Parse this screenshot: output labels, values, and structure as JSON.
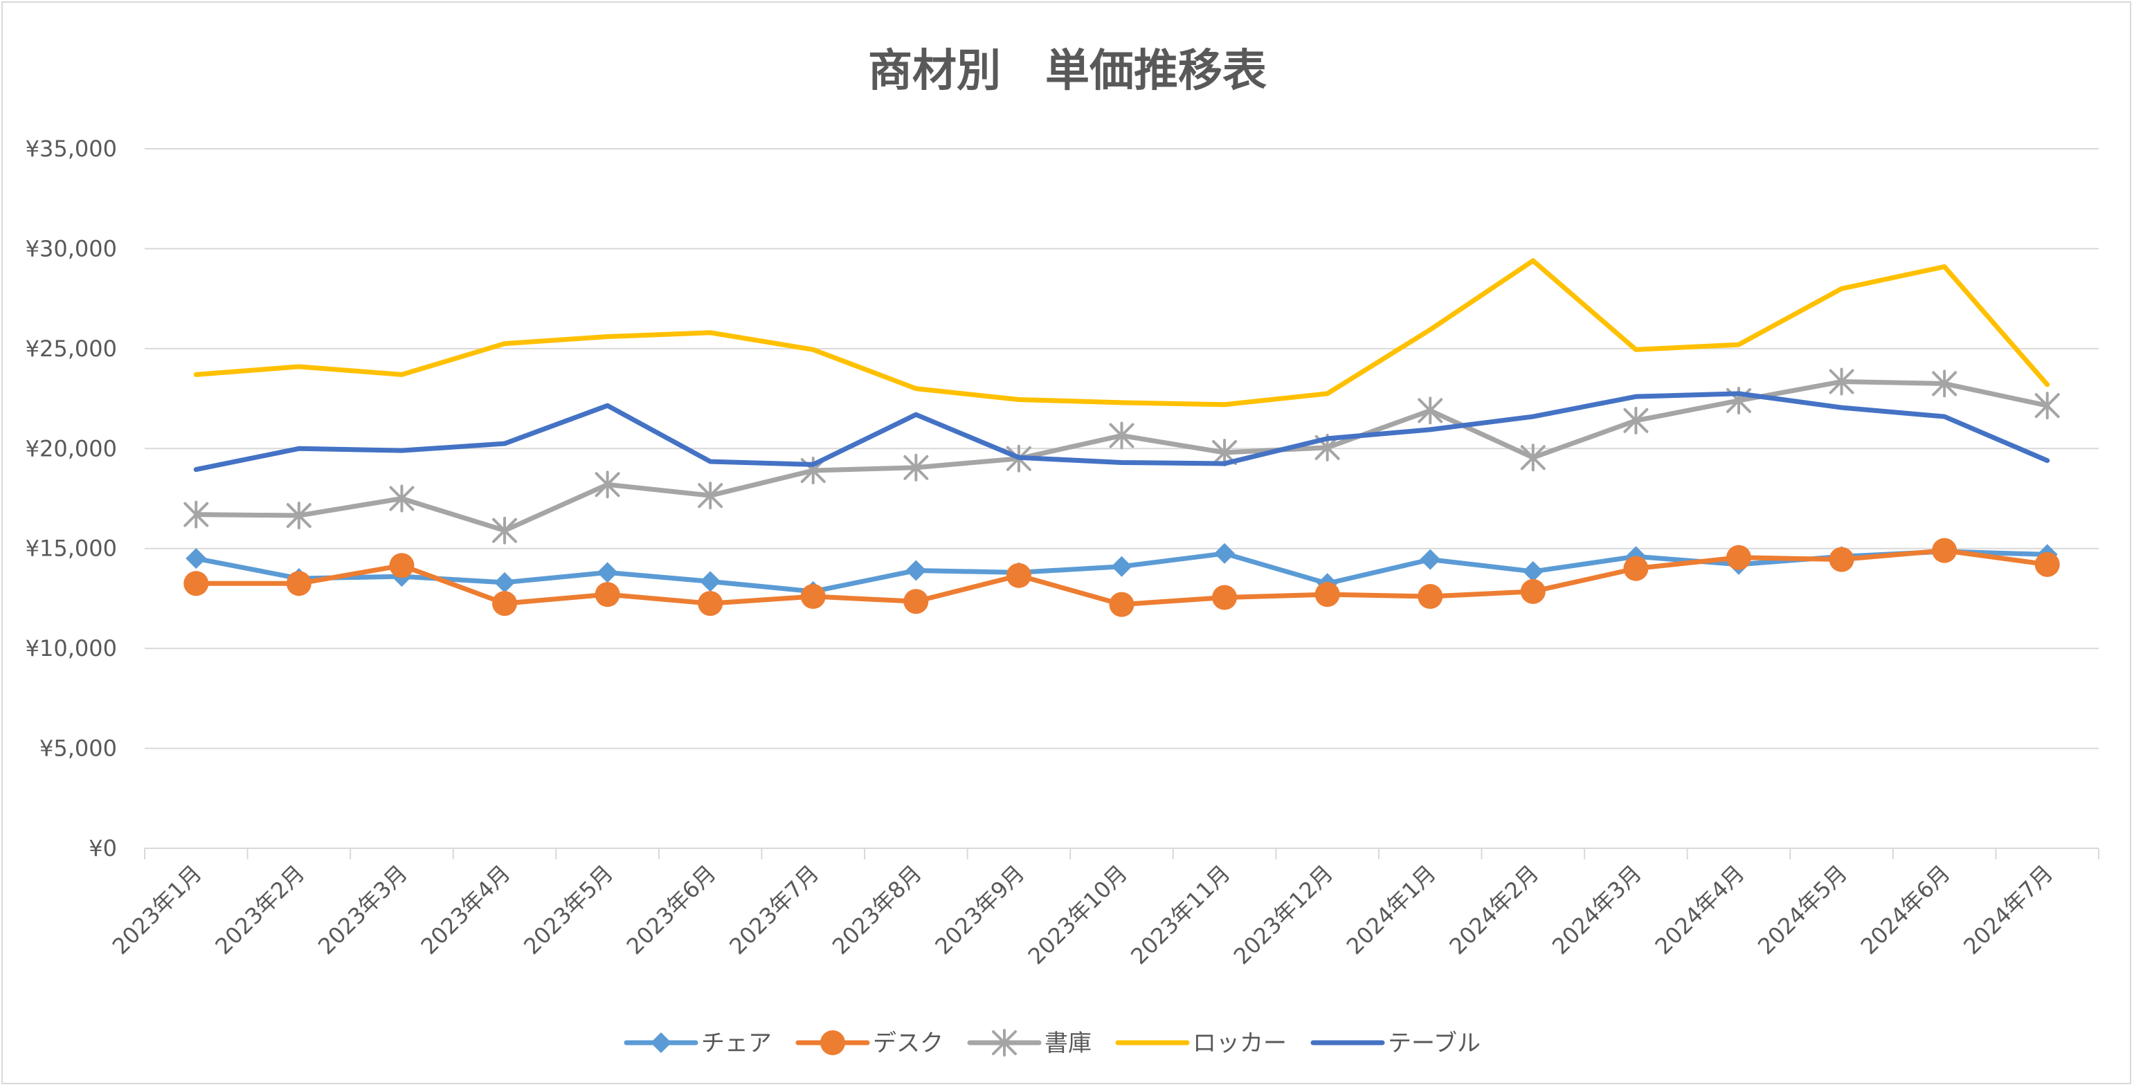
{
  "chart_data": {
    "type": "line",
    "title": "商材別　単価推移表",
    "xlabel": "",
    "ylabel": "",
    "ylim": [
      0,
      35000
    ],
    "ytick_values": [
      0,
      5000,
      10000,
      15000,
      20000,
      25000,
      30000,
      35000
    ],
    "ytick_labels": [
      "¥0",
      "¥5,000",
      "¥10,000",
      "¥15,000",
      "¥20,000",
      "¥25,000",
      "¥30,000",
      "¥35,000"
    ],
    "grid": true,
    "legend_position": "bottom",
    "categories": [
      "2023年1月",
      "2023年2月",
      "2023年3月",
      "2023年4月",
      "2023年5月",
      "2023年6月",
      "2023年7月",
      "2023年8月",
      "2023年9月",
      "2023年10月",
      "2023年11月",
      "2023年12月",
      "2024年1月",
      "2024年2月",
      "2024年3月",
      "2024年4月",
      "2024年5月",
      "2024年6月",
      "2024年7月"
    ],
    "series": [
      {
        "name": "チェア",
        "color": "#5B9BD5",
        "marker": "diamond",
        "values": [
          14500,
          13500,
          13600,
          13300,
          13800,
          13350,
          12850,
          13900,
          13800,
          14100,
          14750,
          13250,
          14450,
          13850,
          14600,
          14200,
          14600,
          14850,
          14700
        ]
      },
      {
        "name": "デスク",
        "color": "#ED7D31",
        "marker": "circle",
        "values": [
          13250,
          13250,
          14150,
          12250,
          12700,
          12250,
          12600,
          12350,
          13650,
          12200,
          12550,
          12700,
          12600,
          12850,
          14000,
          14550,
          14450,
          14900,
          14200
        ]
      },
      {
        "name": "書庫",
        "color": "#A5A5A5",
        "marker": "star",
        "values": [
          16700,
          16650,
          17500,
          15900,
          18200,
          17650,
          18900,
          19050,
          19500,
          20650,
          19800,
          20050,
          21900,
          19550,
          21400,
          22400,
          23350,
          23250,
          22150
        ]
      },
      {
        "name": "ロッカー",
        "color": "#FFC000",
        "marker": "none",
        "values": [
          23700,
          24100,
          23700,
          25250,
          25600,
          25800,
          24950,
          23000,
          22450,
          22300,
          22200,
          22750,
          25950,
          29400,
          24950,
          25200,
          28000,
          29100,
          23200
        ]
      },
      {
        "name": "テーブル",
        "color": "#4472C4",
        "marker": "none",
        "values": [
          18950,
          20000,
          19900,
          20250,
          22150,
          19350,
          19200,
          21700,
          19550,
          19300,
          19250,
          20500,
          20950,
          21600,
          22600,
          22750,
          22050,
          21600,
          19400
        ]
      }
    ]
  }
}
